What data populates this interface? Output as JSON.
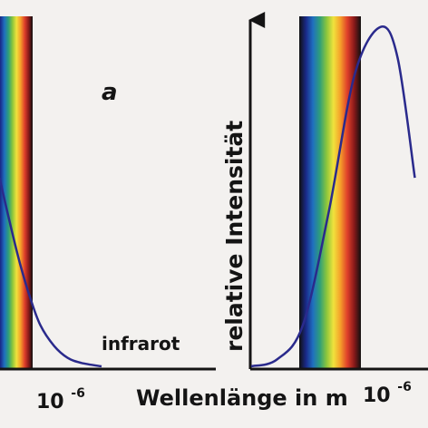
{
  "chart_data": {
    "type": "line",
    "panel_label": "a",
    "xlabel": "Wellenlänge in m",
    "ylabel": "relative Intensität",
    "region_label": "infrarot",
    "x_tick_label": "10",
    "x_tick_exponent": "-6",
    "colors": {
      "curve": "#2a2a8c",
      "axis": "#141414",
      "region_label": "#c0182c",
      "background": "#f3f1ef"
    },
    "spectrum_colors": [
      "#101010",
      "#1a2a8a",
      "#1f6fc0",
      "#2e9e7a",
      "#8cc63c",
      "#f0e23c",
      "#f5a02a",
      "#e0402a",
      "#8a1a1a",
      "#101010"
    ],
    "series": [
      {
        "panel": "left",
        "x_micrometers": [
          0.3,
          0.45,
          0.6,
          0.75,
          0.9,
          1.1,
          1.3,
          1.5,
          1.8
        ],
        "relative_intensity": [
          0.55,
          0.42,
          0.3,
          0.2,
          0.12,
          0.06,
          0.025,
          0.01,
          0.0
        ]
      },
      {
        "panel": "right",
        "x_micrometers": [
          0.25,
          0.4,
          0.55,
          0.7,
          0.85,
          1.0,
          1.1,
          1.2
        ],
        "relative_intensity": [
          0.0,
          0.02,
          0.12,
          0.45,
          0.85,
          0.99,
          0.9,
          0.55
        ]
      }
    ]
  }
}
